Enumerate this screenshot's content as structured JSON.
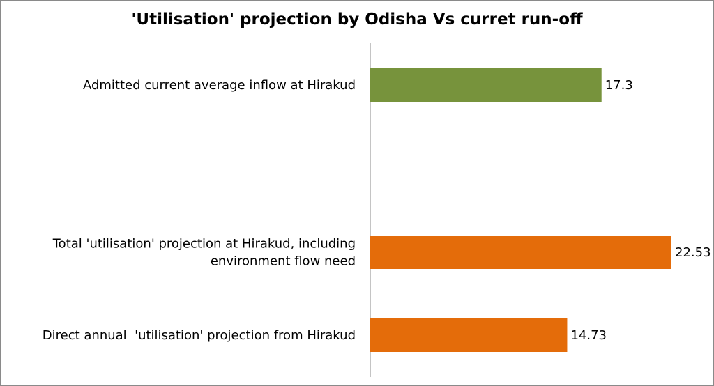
{
  "chart_data": {
    "type": "bar",
    "orientation": "horizontal",
    "title": "'Utilisation' projection by Odisha Vs curret run-off",
    "xlabel": "",
    "ylabel": "",
    "xlim": [
      0,
      22.53
    ],
    "grid": false,
    "legend": "none",
    "categories": [
      {
        "lines": [
          "Admitted current average inflow at Hirakud"
        ],
        "value": 17.3,
        "label": "17.3",
        "color": "#77933c"
      },
      {
        "lines": [
          "Total 'utilisation' projection at Hirakud, including",
          "environment flow need"
        ],
        "value": 22.53,
        "label": "22.53",
        "color": "#e46c0a"
      },
      {
        "lines": [
          "Direct annual  'utilisation' projection from Hirakud"
        ],
        "value": 14.73,
        "label": "14.73",
        "color": "#e46c0a"
      }
    ]
  }
}
